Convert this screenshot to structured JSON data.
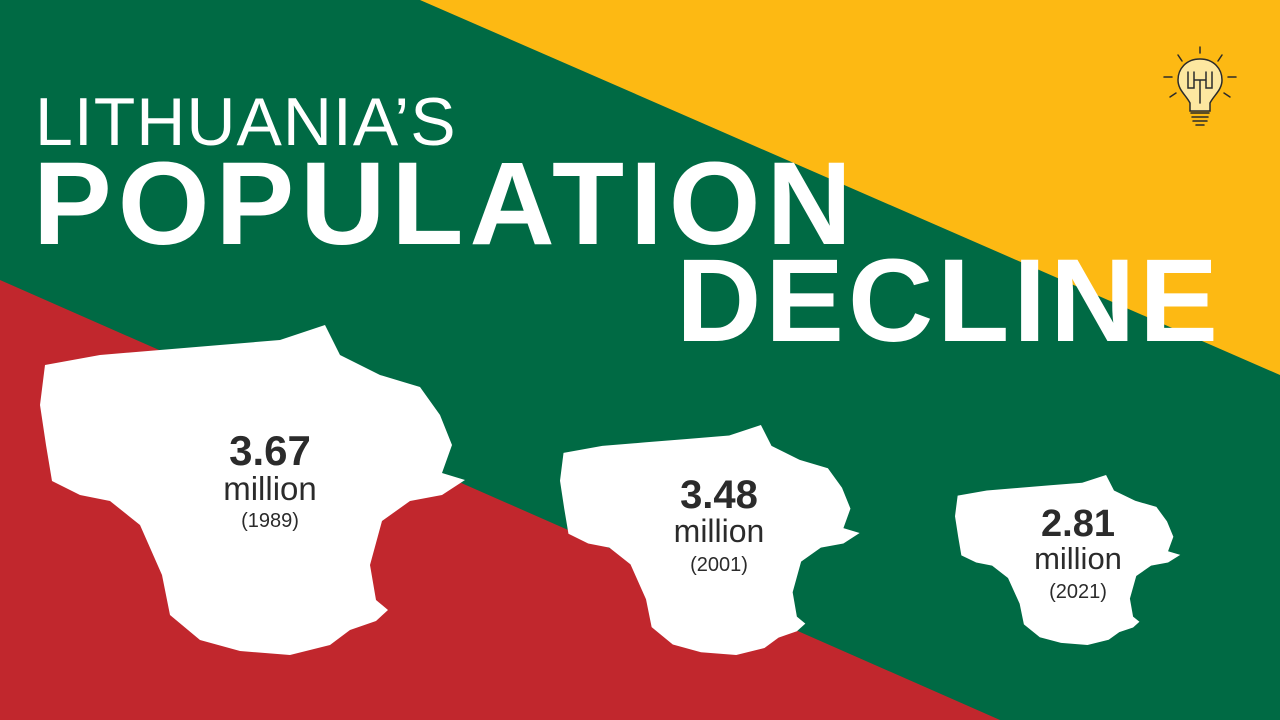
{
  "colors": {
    "green": "#006a44",
    "yellow": "#fdb913",
    "red": "#c1272d",
    "text_dark": "#2b2b2b"
  },
  "title": {
    "line1": "LITHUANIA’S",
    "line2": "POPULATION",
    "line3": "DECLINE"
  },
  "logo_icon": "lightbulb-icon",
  "maps": [
    {
      "value": "3.67",
      "unit": "million",
      "year": "(1989)"
    },
    {
      "value": "3.48",
      "unit": "million",
      "year": "(2001)"
    },
    {
      "value": "2.81",
      "unit": "million",
      "year": "(2021)"
    }
  ]
}
